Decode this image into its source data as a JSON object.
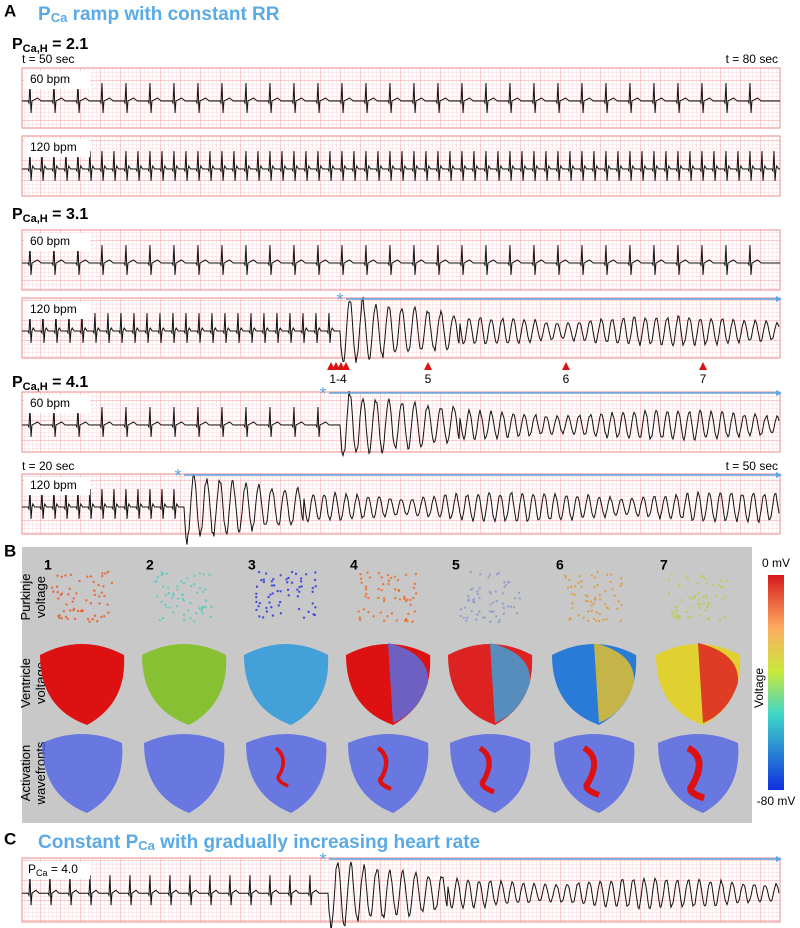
{
  "panel_a": {
    "label": "A",
    "title": {
      "base": "P",
      "sub": "Ca",
      "rest": " ramp with constant RR"
    },
    "groups": [
      {
        "param": {
          "base": "P",
          "sub": "Ca,H",
          "rest": " = 2.1"
        },
        "time_start": "t = 50 sec",
        "time_end": "t = 80 sec",
        "strips": [
          "60 bpm",
          "120 bpm"
        ]
      },
      {
        "param": {
          "base": "P",
          "sub": "Ca,H",
          "rest": " = 3.1"
        },
        "strips": [
          "60 bpm",
          "120 bpm"
        ]
      },
      {
        "param": {
          "base": "P",
          "sub": "Ca,H",
          "rest": " = 4.1"
        },
        "time_start": "t = 20 sec",
        "time_end": "t = 50 sec",
        "strips": [
          "60 bpm",
          "120 bpm"
        ]
      }
    ],
    "markers": [
      "1-4",
      "5",
      "6",
      "7"
    ],
    "onset_symbol": "*"
  },
  "panel_b": {
    "label": "B",
    "columns": [
      "1",
      "2",
      "3",
      "4",
      "5",
      "6",
      "7"
    ],
    "rows": [
      [
        "Purkinje",
        "voltage"
      ],
      [
        "Ventricle",
        "voltage"
      ],
      [
        "Activation",
        "wavefronts"
      ]
    ],
    "colorbar": {
      "max": "0 mV",
      "title": "Voltage",
      "min": "-80 mV"
    }
  },
  "panel_c": {
    "label": "C",
    "title": {
      "base": "Constant P",
      "sub": "Ca",
      "rest": " with gradually increasing heart rate"
    },
    "strip": {
      "base": "P",
      "sub": "Ca",
      "rest": " = 4.0"
    }
  }
}
